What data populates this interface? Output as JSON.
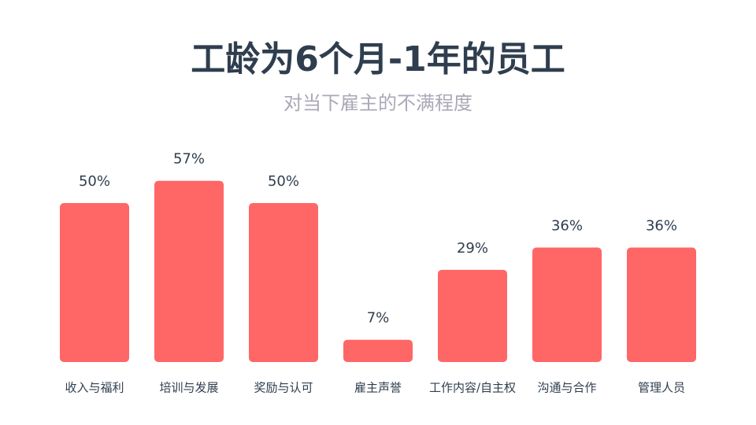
{
  "chart_data": {
    "type": "bar",
    "title": "工龄为6个月-1年的员工",
    "subtitle": "对当下雇主的不满程度",
    "categories": [
      "收入与福利",
      "培训与发展",
      "奖励与认可",
      "雇主声誉",
      "工作内容/自主权",
      "沟通与合作",
      "管理人员"
    ],
    "values": [
      50,
      57,
      50,
      7,
      29,
      36,
      36
    ],
    "value_labels": [
      "50%",
      "57%",
      "50%",
      "7%",
      "29%",
      "36%",
      "36%"
    ],
    "color": "#ff6666"
  }
}
